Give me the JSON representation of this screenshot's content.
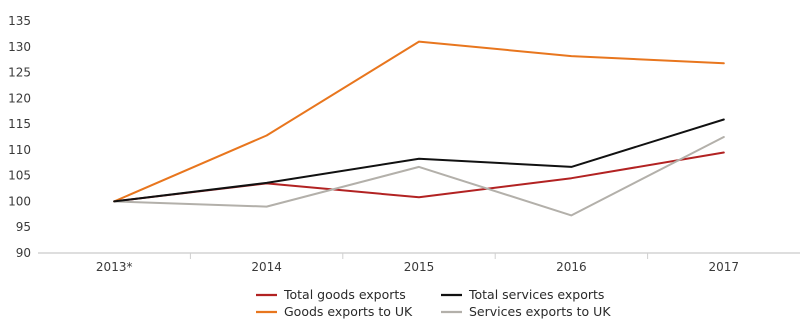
{
  "chart_data": {
    "type": "line",
    "title": "",
    "xlabel": "",
    "ylabel": "",
    "categories": [
      "2013*",
      "2014",
      "2015",
      "2016",
      "2017"
    ],
    "ylim": [
      90,
      135
    ],
    "yticks": [
      90,
      95,
      100,
      105,
      110,
      115,
      120,
      125,
      130,
      135
    ],
    "grid": false,
    "legend_position": "bottom",
    "series": [
      {
        "name": "Total goods exports",
        "color": "#b22222",
        "values": [
          100,
          103.5,
          100.8,
          104.5,
          109.5
        ]
      },
      {
        "name": "Goods exports to UK",
        "color": "#e8761e",
        "values": [
          100,
          112.8,
          131,
          128.2,
          126.8
        ]
      },
      {
        "name": "Total services exports",
        "color": "#111111",
        "values": [
          100,
          103.6,
          108.3,
          106.7,
          115.9
        ]
      },
      {
        "name": "Services exports to UK",
        "color": "#b3b0aa",
        "values": [
          100,
          99,
          106.7,
          97.3,
          112.5
        ]
      }
    ]
  }
}
